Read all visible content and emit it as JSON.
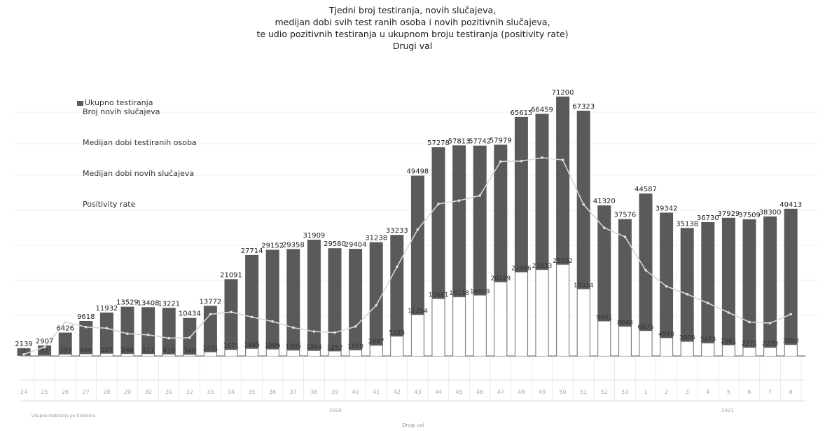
{
  "title_lines": [
    "Tjedni broj testiranja, novih slučajeva,",
    "medijan dobi svih test ranih osoba i novih pozitivnih slučajeva,",
    "te udio pozitivnih testiranja u ukupnom broju testiranja (positivity rate)",
    "Drugi val"
  ],
  "legend": [
    "Ukupno testiranja",
    "Broj novih slučajeva",
    "Medijan dobi testiranih osoba",
    "Medijan dobi novih slučajeva",
    "Positivity rate"
  ],
  "footer": {
    "note": "Ukupno testiranja po tjednima",
    "year_2020": "2020",
    "year_2021": "2021",
    "center_label": "Drugi val"
  },
  "colors": {
    "bars": "#5a5a5a",
    "bar_labels": "#222222",
    "positivity_line": "#d6d6d6",
    "new_cases_bars": "#ffffff"
  },
  "chart_data": {
    "type": "bar",
    "title": "Tjedni broj testiranja, novih slučajeva, medijan dobi svih test ranih osoba i novih pozitivnih slučajeva, te udio pozitivnih testiranja u ukupnom broju testiranja (positivity rate) Drugi val",
    "categories": [
      "24",
      "25",
      "26",
      "27",
      "28",
      "29",
      "30",
      "31",
      "32",
      "33",
      "34",
      "35",
      "36",
      "37",
      "38",
      "39",
      "40",
      "41",
      "42",
      "43",
      "44",
      "45",
      "46",
      "47",
      "48",
      "49",
      "50",
      "51",
      "52",
      "53",
      "1",
      "2",
      "3",
      "4",
      "5",
      "6",
      "7",
      "8"
    ],
    "series": [
      {
        "name": "Ukupno testiranja",
        "values": [
          2139,
          2907,
          6426,
          9618,
          11932,
          13529,
          13408,
          13221,
          10434,
          13772,
          21091,
          27714,
          29152,
          29358,
          31909,
          29580,
          29404,
          31238,
          33233,
          49498,
          57278,
          57813,
          57742,
          57979,
          65615,
          66459,
          71200,
          67323,
          41320,
          37576,
          44587,
          39342,
          35138,
          36730,
          37929,
          37509,
          38300,
          40413
        ]
      },
      {
        "name": "Broj novih slučajeva",
        "values": [
          7,
          47,
          393,
          496,
          597,
          546,
          511,
          418,
          348,
          1031,
          1671,
          1945,
          1806,
          1505,
          1394,
          1252,
          1560,
          2847,
          5325,
          11254,
          15661,
          16138,
          16609,
          20229,
          22966,
          23633,
          25032,
          18314,
          9501,
          8048,
          6875,
          4910,
          3906,
          3473,
          2961,
          2271,
          2270,
          3050
        ]
      },
      {
        "name": "Positivity rate",
        "values": [
          0.3,
          1.6,
          6.1,
          5.2,
          5.0,
          4.0,
          3.8,
          3.2,
          3.3,
          7.5,
          7.9,
          7.0,
          6.2,
          5.1,
          4.4,
          4.2,
          5.3,
          9.1,
          16.0,
          22.7,
          27.3,
          27.9,
          28.8,
          34.9,
          35.0,
          35.6,
          35.2,
          27.2,
          23.0,
          21.4,
          15.4,
          12.5,
          11.1,
          9.5,
          7.8,
          6.1,
          5.9,
          7.5
        ]
      }
    ],
    "ylim": [
      0,
      75000
    ]
  }
}
